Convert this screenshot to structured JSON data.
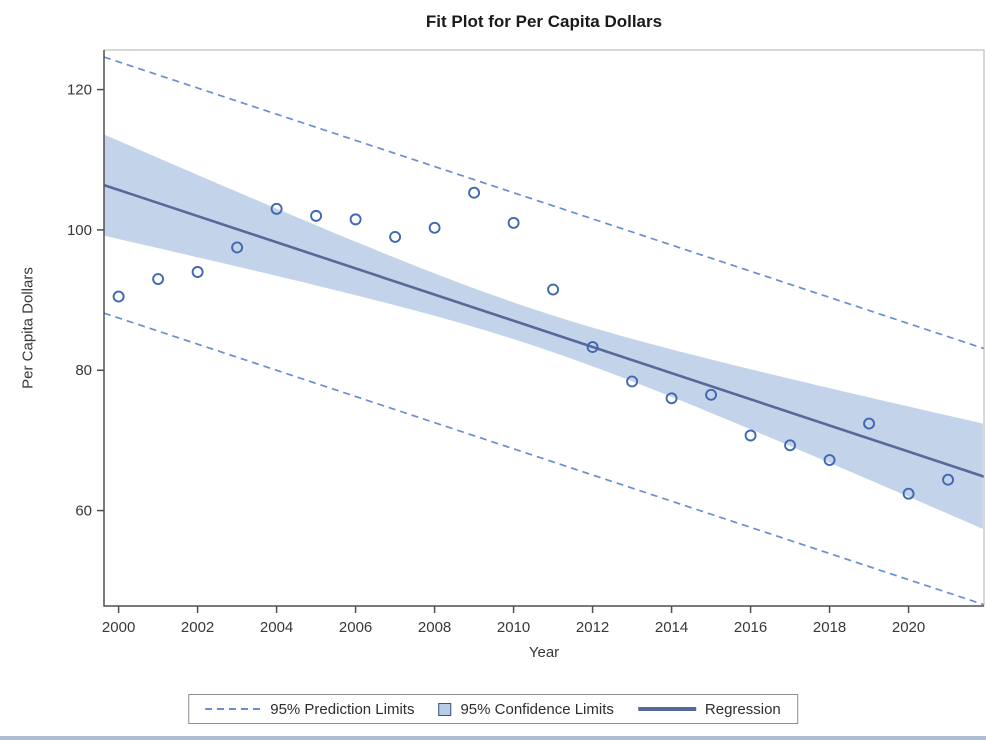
{
  "chart_data": {
    "type": "scatter",
    "title": "Fit Plot for Per Capita Dollars",
    "xlabel": "Year",
    "ylabel": "Per Capita Dollars",
    "xlim": [
      1999.63,
      2021.91
    ],
    "ylim": [
      46.4,
      125.64
    ],
    "x_ticks": [
      2000,
      2002,
      2004,
      2006,
      2008,
      2010,
      2012,
      2014,
      2016,
      2018,
      2020
    ],
    "y_ticks": [
      60,
      80,
      100,
      120
    ],
    "grid": "off",
    "points": {
      "years": [
        2000,
        2001,
        2002,
        2003,
        2004,
        2005,
        2006,
        2007,
        2008,
        2009,
        2010,
        2011,
        2012,
        2013,
        2014,
        2015,
        2016,
        2017,
        2018,
        2019,
        2020,
        2021
      ],
      "values": [
        90.5,
        93.0,
        94.0,
        97.5,
        103.0,
        102.0,
        101.5,
        99.0,
        100.3,
        105.3,
        101.0,
        91.5,
        83.3,
        78.4,
        76.0,
        76.5,
        70.7,
        69.3,
        67.2,
        72.4,
        62.4,
        64.4
      ]
    },
    "regression": {
      "value_at_2000": 105.7,
      "slope_per_year": -1.865
    },
    "prediction_limits": {
      "offset_from_regression": 18.25
    },
    "confidence_band": {
      "center_year": 2010.5,
      "min_halfwidth": 2.6,
      "quad_coeff": 0.383
    },
    "legend": {
      "position": "bottom",
      "items": [
        {
          "label": "95% Prediction Limits",
          "swatch": "dashed"
        },
        {
          "label": "95% Confidence Limits",
          "swatch": "square"
        },
        {
          "label": "Regression",
          "swatch": "line"
        }
      ]
    },
    "colors": {
      "marker": "#4067b1",
      "prediction_dash": "#6b8ed0",
      "regression_line": "#56699a",
      "confidence_fill": "#c3d4ea",
      "legend_square_fill": "#b9cce6",
      "legend_square_border": "#3d5185",
      "axis_line": "#4f4f4f",
      "frame_line": "#b0b0b0",
      "tick_text": "#383838"
    }
  }
}
